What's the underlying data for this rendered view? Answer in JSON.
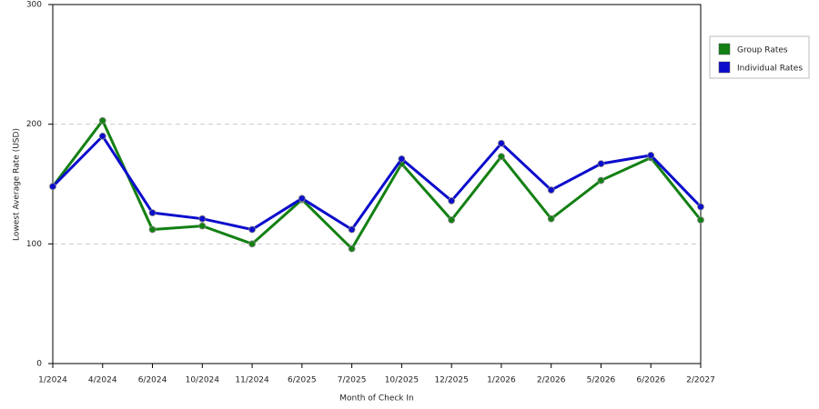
{
  "chart_data": {
    "type": "line",
    "x_label": "Month of Check In",
    "y_label": "Lowest Average Rate (USD)",
    "categories": [
      "1/2024",
      "4/2024",
      "6/2024",
      "10/2024",
      "11/2024",
      "6/2025",
      "7/2025",
      "10/2025",
      "12/2025",
      "1/2026",
      "2/2026",
      "5/2026",
      "6/2026",
      "2/2027"
    ],
    "series": [
      {
        "name": "Group Rates",
        "color": "#138013",
        "values": [
          148,
          203,
          112,
          115,
          100,
          137,
          96,
          167,
          120,
          173,
          121,
          153,
          172,
          120
        ]
      },
      {
        "name": "Individual Rates",
        "color": "#0c0ccc",
        "values": [
          148,
          190,
          126,
          121,
          112,
          138,
          112,
          171,
          136,
          184,
          145,
          167,
          174,
          131
        ]
      }
    ],
    "ylim": [
      0,
      300
    ],
    "yticks": [
      0,
      100,
      200,
      300
    ],
    "grid": true,
    "legend": "right"
  }
}
